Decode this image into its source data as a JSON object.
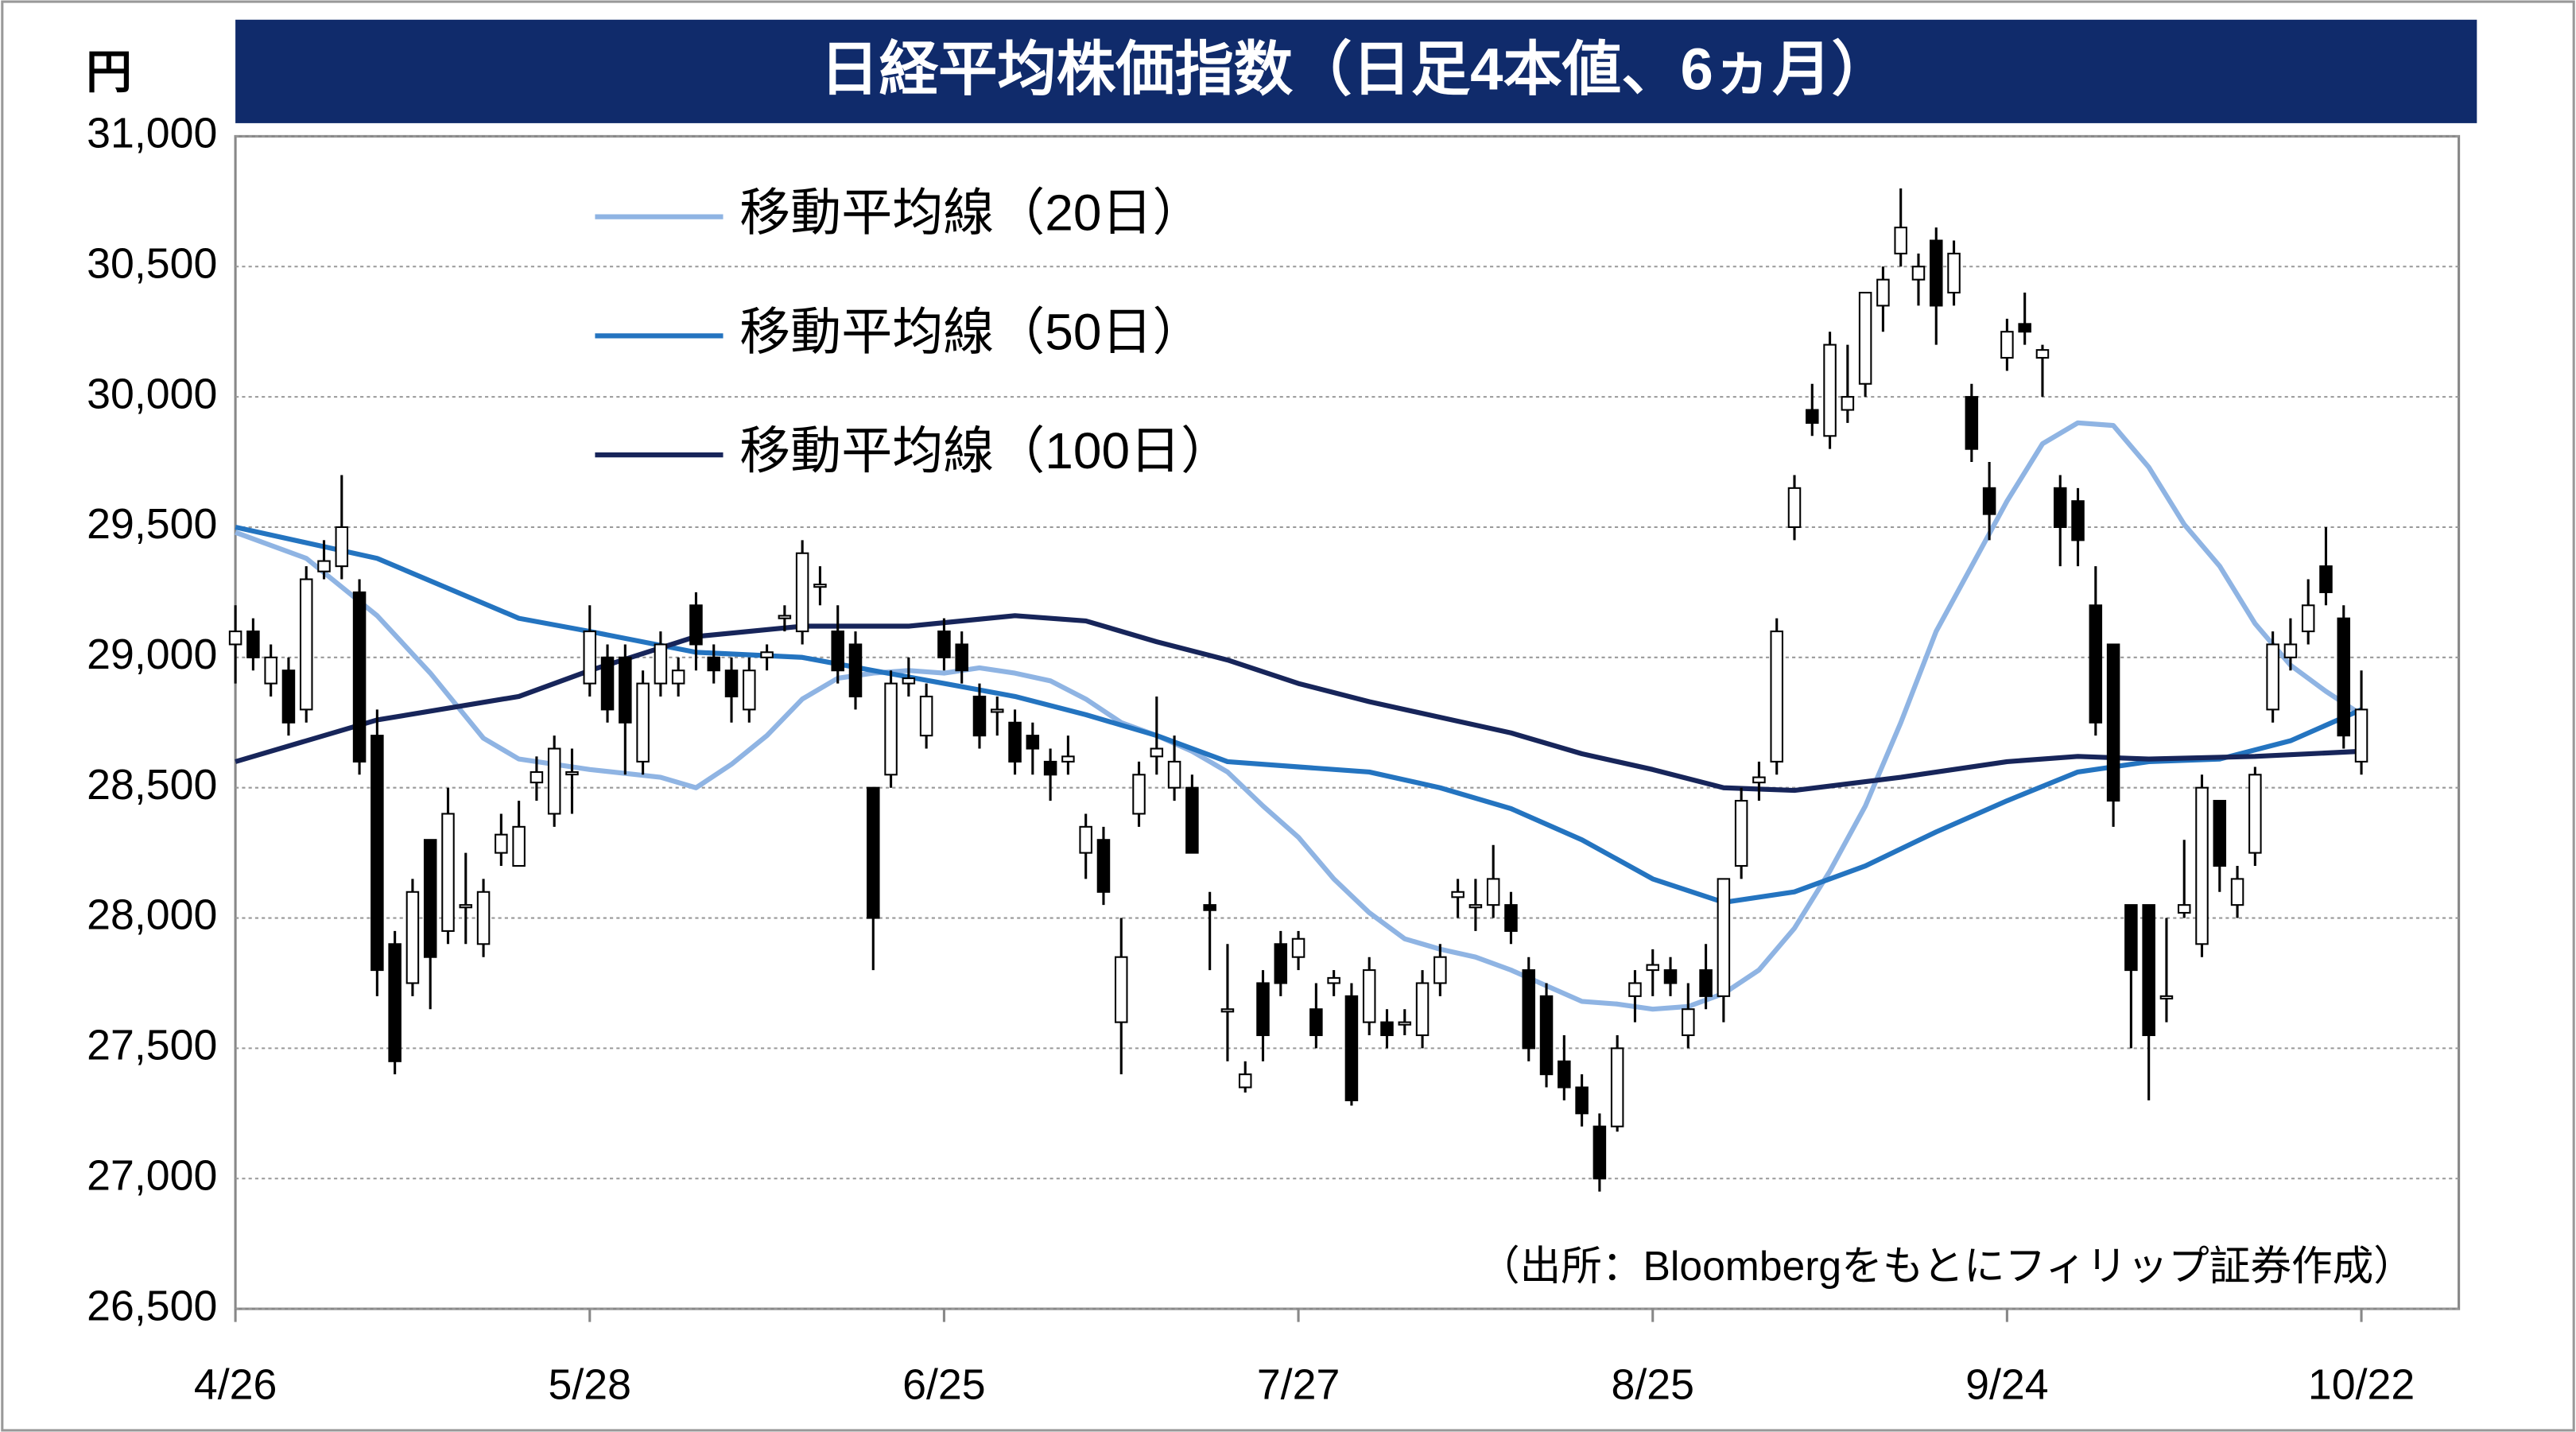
{
  "chart_data": {
    "type": "candlestick",
    "title": "日経平均株価指数（日足4本値、6ヵ月）",
    "y_unit": "円",
    "source": "（出所：Bloombergをもとにフィリップ証券作成）",
    "xlim": [
      0,
      125.5
    ],
    "xticks": [
      {
        "value": 0,
        "label": "4/26"
      },
      {
        "value": 20,
        "label": "5/28"
      },
      {
        "value": 40,
        "label": "6/25"
      },
      {
        "value": 60,
        "label": "7/27"
      },
      {
        "value": 80,
        "label": "8/25"
      },
      {
        "value": 100,
        "label": "9/24"
      },
      {
        "value": 120,
        "label": "10/22"
      }
    ],
    "ylim": [
      26500,
      31000
    ],
    "yticks": [
      {
        "value": 26500,
        "label": "26,500"
      },
      {
        "value": 27000,
        "label": "27,000"
      },
      {
        "value": 27500,
        "label": "27,500"
      },
      {
        "value": 28000,
        "label": "28,000"
      },
      {
        "value": 28500,
        "label": "28,500"
      },
      {
        "value": 29000,
        "label": "29,000"
      },
      {
        "value": 29500,
        "label": "29,500"
      },
      {
        "value": 30000,
        "label": "30,000"
      },
      {
        "value": 30500,
        "label": "30,500"
      },
      {
        "value": 31000,
        "label": "31,000"
      }
    ],
    "grid": true,
    "candle_up_color": "#ffffff",
    "candle_down_color": "#000000",
    "candles": [
      [
        29050,
        29200,
        28900,
        29100
      ],
      [
        29100,
        29150,
        28950,
        29000
      ],
      [
        28900,
        29050,
        28850,
        29000
      ],
      [
        28950,
        29000,
        28700,
        28750
      ],
      [
        28800,
        29350,
        28750,
        29300
      ],
      [
        29330,
        29450,
        29300,
        29370
      ],
      [
        29350,
        29700,
        29300,
        29500
      ],
      [
        29250,
        29300,
        28550,
        28600
      ],
      [
        28700,
        28800,
        27700,
        27800
      ],
      [
        27900,
        27950,
        27400,
        27450
      ],
      [
        27750,
        28150,
        27700,
        28100
      ],
      [
        28300,
        28300,
        27650,
        27850
      ],
      [
        27950,
        28500,
        27900,
        28400
      ],
      [
        28050,
        28250,
        27900,
        28050
      ],
      [
        27900,
        28150,
        27850,
        28100
      ],
      [
        28250,
        28400,
        28200,
        28320
      ],
      [
        28200,
        28450,
        28200,
        28350
      ],
      [
        28520,
        28620,
        28450,
        28560
      ],
      [
        28400,
        28700,
        28350,
        28650
      ],
      [
        28560,
        28650,
        28400,
        28560
      ],
      [
        28900,
        29200,
        28850,
        29100
      ],
      [
        29000,
        29050,
        28750,
        28800
      ],
      [
        29000,
        29050,
        28550,
        28750
      ],
      [
        28600,
        28950,
        28550,
        28900
      ],
      [
        28900,
        29100,
        28850,
        29050
      ],
      [
        28900,
        29000,
        28850,
        28950
      ],
      [
        29200,
        29250,
        28950,
        29050
      ],
      [
        29000,
        29050,
        28900,
        28950
      ],
      [
        28950,
        29000,
        28750,
        28850
      ],
      [
        28800,
        29000,
        28750,
        28950
      ],
      [
        29000,
        29050,
        28950,
        29020
      ],
      [
        29150,
        29200,
        29100,
        29160
      ],
      [
        29100,
        29450,
        29050,
        29400
      ],
      [
        29280,
        29350,
        29200,
        29280
      ],
      [
        29100,
        29200,
        28900,
        28950
      ],
      [
        29050,
        29100,
        28800,
        28850
      ],
      [
        28500,
        28500,
        27800,
        28000
      ],
      [
        28550,
        28950,
        28500,
        28900
      ],
      [
        28900,
        29000,
        28850,
        28920
      ],
      [
        28700,
        28900,
        28650,
        28850
      ],
      [
        29100,
        29150,
        28950,
        29000
      ],
      [
        29050,
        29100,
        28900,
        28950
      ],
      [
        28850,
        28900,
        28650,
        28700
      ],
      [
        28800,
        28850,
        28700,
        28800
      ],
      [
        28750,
        28800,
        28550,
        28600
      ],
      [
        28700,
        28750,
        28550,
        28650
      ],
      [
        28600,
        28650,
        28450,
        28550
      ],
      [
        28600,
        28700,
        28550,
        28620
      ],
      [
        28250,
        28400,
        28150,
        28350
      ],
      [
        28300,
        28350,
        28050,
        28100
      ],
      [
        27600,
        28000,
        27400,
        27850
      ],
      [
        28400,
        28600,
        28350,
        28550
      ],
      [
        28620,
        28850,
        28550,
        28650
      ],
      [
        28500,
        28700,
        28450,
        28600
      ],
      [
        28500,
        28550,
        28250,
        28250
      ],
      [
        28050,
        28100,
        27800,
        28030
      ],
      [
        27650,
        27900,
        27450,
        27650
      ],
      [
        27350,
        27450,
        27330,
        27400
      ],
      [
        27750,
        27800,
        27450,
        27550
      ],
      [
        27900,
        27950,
        27700,
        27750
      ],
      [
        27850,
        27950,
        27800,
        27920
      ],
      [
        27650,
        27750,
        27500,
        27550
      ],
      [
        27750,
        27800,
        27700,
        27770
      ],
      [
        27700,
        27750,
        27280,
        27300
      ],
      [
        27600,
        27850,
        27550,
        27800
      ],
      [
        27600,
        27650,
        27500,
        27550
      ],
      [
        27600,
        27650,
        27550,
        27600
      ],
      [
        27550,
        27800,
        27500,
        27750
      ],
      [
        27750,
        27900,
        27700,
        27850
      ],
      [
        28080,
        28150,
        28000,
        28100
      ],
      [
        28050,
        28150,
        27950,
        28050
      ],
      [
        28050,
        28280,
        28000,
        28150
      ],
      [
        28050,
        28100,
        27900,
        27950
      ],
      [
        27800,
        27850,
        27450,
        27500
      ],
      [
        27700,
        27750,
        27350,
        27400
      ],
      [
        27450,
        27550,
        27300,
        27350
      ],
      [
        27350,
        27400,
        27200,
        27250
      ],
      [
        27200,
        27250,
        26950,
        27000
      ],
      [
        27200,
        27550,
        27180,
        27500
      ],
      [
        27700,
        27800,
        27600,
        27750
      ],
      [
        27800,
        27880,
        27700,
        27820
      ],
      [
        27800,
        27850,
        27700,
        27750
      ],
      [
        27550,
        27750,
        27500,
        27650
      ],
      [
        27800,
        27900,
        27650,
        27700
      ],
      [
        27700,
        28150,
        27600,
        28150
      ],
      [
        28200,
        28500,
        28150,
        28450
      ],
      [
        28520,
        28600,
        28450,
        28540
      ],
      [
        28600,
        29150,
        28550,
        29100
      ],
      [
        29500,
        29700,
        29450,
        29650
      ],
      [
        29950,
        30050,
        29850,
        29900
      ],
      [
        29850,
        30250,
        29800,
        30200
      ],
      [
        29950,
        30200,
        29900,
        30000
      ],
      [
        30050,
        30400,
        30000,
        30400
      ],
      [
        30350,
        30500,
        30250,
        30450
      ],
      [
        30550,
        30800,
        30500,
        30650
      ],
      [
        30450,
        30550,
        30350,
        30500
      ],
      [
        30600,
        30650,
        30200,
        30350
      ],
      [
        30400,
        30600,
        30350,
        30550
      ],
      [
        30000,
        30050,
        29750,
        29800
      ],
      [
        29650,
        29750,
        29450,
        29550
      ],
      [
        30150,
        30300,
        30100,
        30250
      ],
      [
        30280,
        30400,
        30200,
        30250
      ],
      [
        30150,
        30200,
        30000,
        30180
      ],
      [
        29650,
        29700,
        29350,
        29500
      ],
      [
        29600,
        29650,
        29350,
        29450
      ],
      [
        29200,
        29350,
        28700,
        28750
      ],
      [
        29050,
        29050,
        28350,
        28450
      ],
      [
        28050,
        28050,
        27500,
        27800
      ],
      [
        28050,
        28050,
        27300,
        27550
      ],
      [
        27700,
        28000,
        27600,
        27700
      ],
      [
        28020,
        28300,
        28000,
        28050
      ],
      [
        27900,
        28550,
        27850,
        28500
      ],
      [
        28450,
        28450,
        28100,
        28200
      ],
      [
        28050,
        28200,
        28000,
        28150
      ],
      [
        28250,
        28580,
        28200,
        28550
      ],
      [
        28800,
        29100,
        28750,
        29050
      ],
      [
        29000,
        29150,
        28950,
        29050
      ],
      [
        29100,
        29300,
        29050,
        29200
      ],
      [
        29350,
        29500,
        29200,
        29250
      ],
      [
        29150,
        29200,
        28650,
        28700
      ],
      [
        28600,
        28950,
        28550,
        28800
      ]
    ],
    "series": [
      {
        "name": "移動平均線（20日）",
        "color": "#8fb4e3",
        "x": [
          0,
          4,
          8,
          11,
          14,
          16,
          20,
          24,
          26,
          28,
          30,
          32,
          34,
          36,
          38,
          40,
          42,
          44,
          46,
          48,
          50,
          52,
          54,
          56,
          58,
          60,
          62,
          64,
          66,
          68,
          70,
          72,
          74,
          76,
          78,
          80,
          82,
          84,
          86,
          88,
          90,
          92,
          94,
          96,
          98,
          100,
          102,
          104,
          106,
          108,
          110,
          112,
          114,
          116,
          118,
          120
        ],
        "values": [
          29480,
          29380,
          29160,
          28940,
          28690,
          28610,
          28570,
          28540,
          28500,
          28590,
          28700,
          28840,
          28920,
          28940,
          28950,
          28940,
          28960,
          28940,
          28910,
          28840,
          28750,
          28700,
          28640,
          28560,
          28430,
          28310,
          28150,
          28020,
          27920,
          27880,
          27850,
          27800,
          27740,
          27680,
          27670,
          27650,
          27660,
          27710,
          27800,
          27960,
          28180,
          28430,
          28750,
          29100,
          29350,
          29600,
          29820,
          29900,
          29890,
          29730,
          29510,
          29350,
          29130,
          28970,
          28870,
          28780
        ]
      },
      {
        "name": "移動平均線（50日）",
        "color": "#2474c0",
        "x": [
          0,
          8,
          16,
          20,
          26,
          32,
          36,
          40,
          44,
          48,
          52,
          56,
          60,
          64,
          68,
          72,
          76,
          80,
          84,
          88,
          92,
          96,
          100,
          104,
          108,
          112,
          116,
          120
        ],
        "values": [
          29500,
          29380,
          29150,
          29100,
          29020,
          29000,
          28950,
          28900,
          28850,
          28780,
          28700,
          28600,
          28580,
          28560,
          28500,
          28420,
          28300,
          28150,
          28060,
          28100,
          28200,
          28330,
          28450,
          28560,
          28600,
          28610,
          28680,
          28800
        ]
      },
      {
        "name": "移動平均線（100日）",
        "color": "#17255a",
        "x": [
          0,
          8,
          16,
          20,
          26,
          32,
          38,
          44,
          48,
          52,
          56,
          60,
          64,
          68,
          72,
          76,
          80,
          84,
          88,
          94,
          100,
          104,
          108,
          114,
          120
        ],
        "values": [
          28600,
          28760,
          28850,
          28950,
          29080,
          29120,
          29120,
          29160,
          29140,
          29060,
          28990,
          28900,
          28830,
          28770,
          28710,
          28630,
          28570,
          28500,
          28490,
          28540,
          28600,
          28620,
          28610,
          28620,
          28640
        ]
      }
    ]
  }
}
